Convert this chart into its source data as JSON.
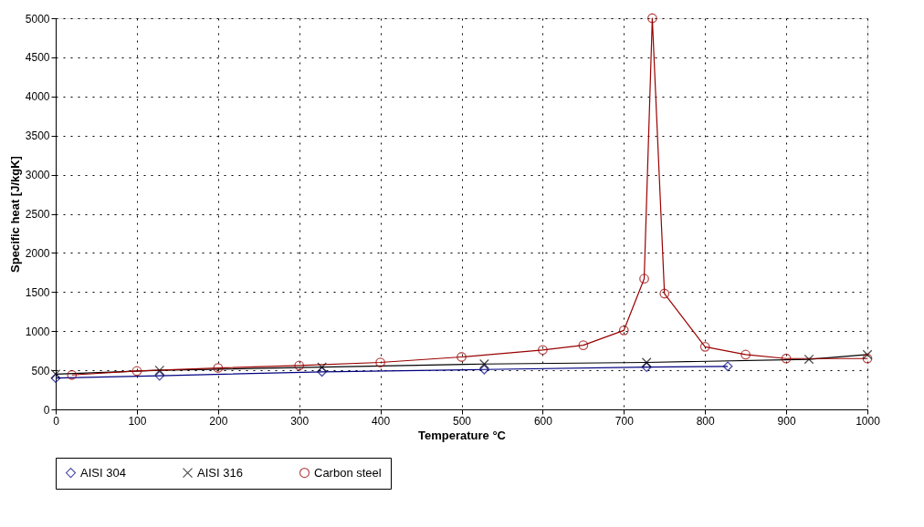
{
  "chart_data": {
    "type": "line",
    "xlabel": "Temperature °C",
    "ylabel": "Specific heat [J/kgK]",
    "xlim": [
      0,
      1000
    ],
    "ylim": [
      0,
      5000
    ],
    "xticks": [
      0,
      100,
      200,
      300,
      400,
      500,
      600,
      700,
      800,
      900,
      1000
    ],
    "yticks": [
      0,
      500,
      1000,
      1500,
      2000,
      2500,
      3000,
      3500,
      4000,
      4500,
      5000
    ],
    "grid": true,
    "legend": "bottom",
    "line_style": "solid",
    "series": [
      {
        "name": "AISI 304",
        "color": "#000080",
        "marker": "diamond",
        "x": [
          0,
          128,
          328,
          528,
          728,
          828
        ],
        "values": [
          400,
          430,
          480,
          510,
          540,
          550
        ]
      },
      {
        "name": "AISI 316",
        "color": "#000000",
        "marker": "cross",
        "x": [
          0,
          128,
          328,
          528,
          728,
          928,
          1000
        ],
        "values": [
          450,
          500,
          540,
          580,
          600,
          640,
          700
        ]
      },
      {
        "name": "Carbon steel",
        "color": "#990000",
        "marker": "circle",
        "x": [
          20,
          100,
          200,
          300,
          400,
          500,
          600,
          650,
          700,
          725,
          735,
          750,
          800,
          850,
          900,
          1000
        ],
        "values": [
          440,
          490,
          530,
          560,
          600,
          670,
          760,
          820,
          1010,
          1670,
          5000,
          1480,
          800,
          700,
          650,
          650
        ]
      }
    ]
  }
}
